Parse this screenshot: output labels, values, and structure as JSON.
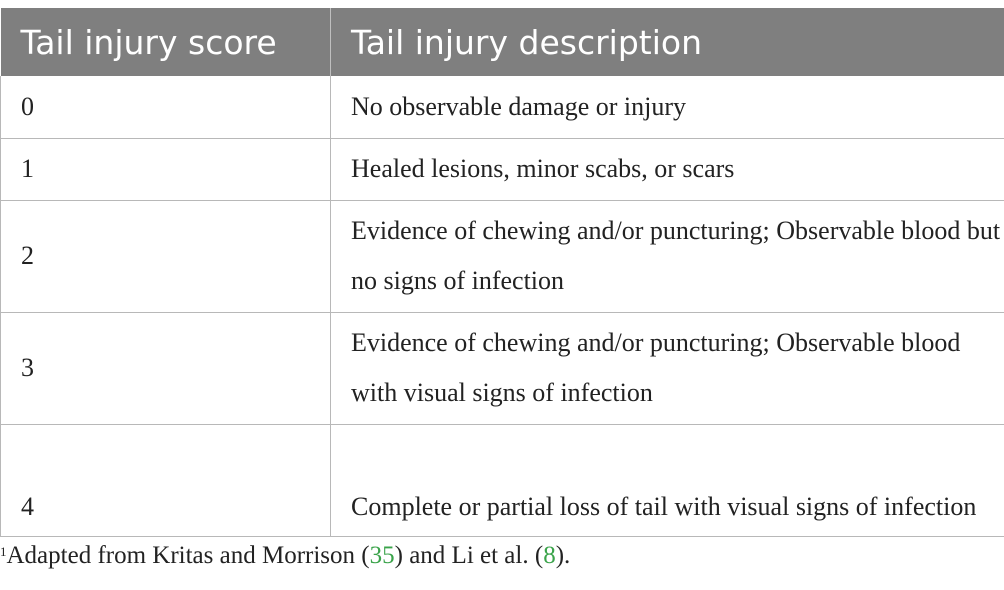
{
  "table": {
    "headers": [
      "Tail injury score",
      "Tail injury description"
    ],
    "rows": [
      {
        "score": "0",
        "description": "No observable damage or injury"
      },
      {
        "score": "1",
        "description": "Healed lesions, minor scabs, or scars"
      },
      {
        "score": "2",
        "description": "Evidence of chewing and/or puncturing; Observable blood but no signs of infection"
      },
      {
        "score": "3",
        "description": "Evidence of chewing and/or puncturing; Observable blood with visual signs of infection"
      },
      {
        "score": "4",
        "description": "Complete or partial loss of tail with visual signs of infection"
      }
    ]
  },
  "footnote": {
    "marker": "1",
    "text_before": "Adapted from Kritas and Morrison (",
    "ref1": "35",
    "text_middle": ") and Li et al. (",
    "ref2": "8",
    "text_after": ")."
  },
  "colors": {
    "header_bg": "#7f7f7f",
    "header_text": "#ffffff",
    "reference_link": "#3aa34a"
  }
}
